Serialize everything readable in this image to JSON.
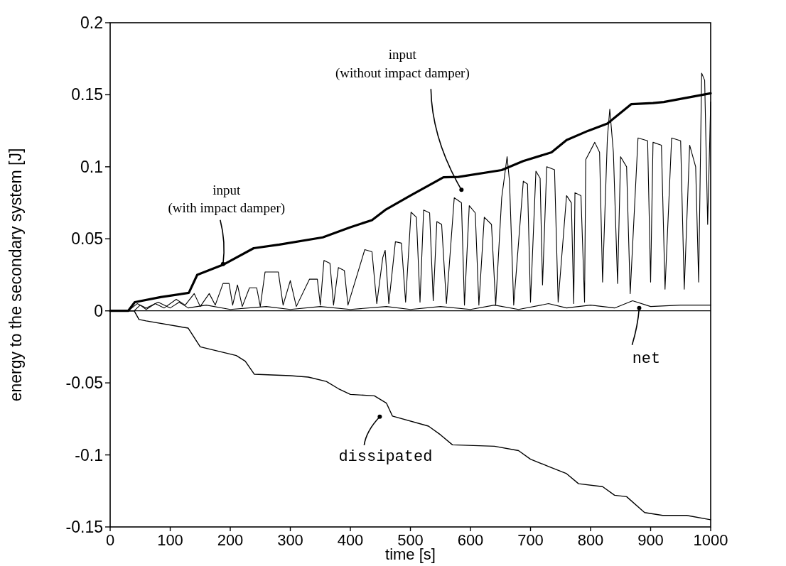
{
  "chart_data": {
    "type": "line",
    "xlabel": "time [s]",
    "ylabel": "energy to the secondary system [J]",
    "xlim": [
      0,
      1000
    ],
    "xticks": [
      0,
      100,
      200,
      300,
      400,
      500,
      600,
      700,
      800,
      900,
      1000
    ],
    "ylim": [
      -0.15,
      0.2
    ],
    "yticks": [
      -0.15,
      -0.1,
      -0.05,
      0,
      0.05,
      0.1,
      0.15,
      0.2
    ],
    "ref_lines": [
      {
        "axis": "y",
        "value": 0
      }
    ],
    "series": [
      {
        "color": "#000000",
        "x": [
          0,
          30,
          41,
          84,
          131,
          145,
          188,
          239,
          282,
          354,
          400,
          436,
          458,
          500,
          555,
          580,
          652,
          688,
          735,
          760,
          796,
          828,
          868,
          904,
          922,
          1000
        ],
        "values": [
          0,
          0,
          0.006,
          0.0095,
          0.0125,
          0.025,
          0.032,
          0.0435,
          0.046,
          0.051,
          0.058,
          0.063,
          0.07,
          0.08,
          0.0927,
          0.093,
          0.0977,
          0.104,
          0.11,
          0.1185,
          0.125,
          0.13,
          0.1435,
          0.1442,
          0.145,
          0.151
        ]
      },
      {
        "color": "#000000",
        "x": [
          0,
          40,
          50,
          60,
          75,
          90,
          110,
          125,
          140,
          150,
          165,
          175,
          188,
          198,
          204,
          212,
          220,
          232,
          244,
          250,
          258,
          280,
          288,
          300,
          310,
          332,
          345,
          350,
          356,
          366,
          372,
          380,
          390,
          396,
          424,
          436,
          444,
          454,
          458,
          464,
          475,
          485,
          492,
          501,
          510,
          516,
          522,
          532,
          538,
          544,
          552,
          560,
          573,
          585,
          590,
          598,
          608,
          614,
          623,
          635,
          642,
          652,
          661,
          665,
          672,
          688,
          695,
          700,
          709,
          716,
          720,
          727,
          740,
          746,
          760,
          768,
          772,
          774,
          784,
          790,
          792,
          807,
          815,
          820,
          828,
          832,
          838,
          845,
          850,
          860,
          866,
          879,
          895,
          900,
          904,
          918,
          924,
          935,
          950,
          956,
          965,
          975,
          980,
          985,
          990,
          995,
          1000
        ],
        "values": [
          0,
          0,
          0.004,
          0.001,
          0.005,
          0.002,
          0.008,
          0.004,
          0.012,
          0.003,
          0.012,
          0.004,
          0.019,
          0.019,
          0.004,
          0.018,
          0.003,
          0.016,
          0.016,
          0.003,
          0.027,
          0.027,
          0.004,
          0.021,
          0.003,
          0.022,
          0.022,
          0.004,
          0.035,
          0.033,
          0.004,
          0.03,
          0.028,
          0.004,
          0.0425,
          0.041,
          0.005,
          0.037,
          0.042,
          0.005,
          0.048,
          0.047,
          0.006,
          0.0685,
          0.065,
          0.006,
          0.07,
          0.068,
          0.007,
          0.062,
          0.06,
          0.005,
          0.0785,
          0.075,
          0.004,
          0.073,
          0.068,
          0.004,
          0.065,
          0.06,
          0.004,
          0.0785,
          0.107,
          0.09,
          0.004,
          0.09,
          0.088,
          0.006,
          0.097,
          0.092,
          0.018,
          0.1,
          0.098,
          0.006,
          0.08,
          0.075,
          0.005,
          0.082,
          0.08,
          0.006,
          0.105,
          0.117,
          0.11,
          0.02,
          0.12,
          0.14,
          0.11,
          0.019,
          0.107,
          0.1,
          0.012,
          0.12,
          0.118,
          0.02,
          0.117,
          0.115,
          0.015,
          0.12,
          0.118,
          0.015,
          0.115,
          0.1,
          0.02,
          0.165,
          0.16,
          0.06,
          0.145
        ]
      },
      {
        "color": "#000000",
        "x": [
          0,
          30,
          45,
          60,
          80,
          100,
          115,
          130,
          160,
          200,
          260,
          300,
          350,
          400,
          460,
          500,
          550,
          600,
          640,
          680,
          730,
          760,
          800,
          840,
          870,
          900,
          950,
          1000
        ],
        "values": [
          0,
          0,
          0.005,
          0.002,
          0.006,
          0.002,
          0.006,
          0.002,
          0.004,
          0.001,
          0.003,
          0.001,
          0.003,
          0.001,
          0.003,
          0.001,
          0.003,
          0.001,
          0.004,
          0.001,
          0.005,
          0.002,
          0.004,
          0.002,
          0.007,
          0.003,
          0.004,
          0.004
        ]
      },
      {
        "color": "#000000",
        "x": [
          0,
          40,
          48,
          60,
          130,
          150,
          210,
          225,
          240,
          300,
          330,
          360,
          380,
          400,
          440,
          460,
          470,
          530,
          550,
          570,
          640,
          680,
          700,
          730,
          760,
          780,
          820,
          840,
          860,
          890,
          920,
          960,
          1000
        ],
        "values": [
          0,
          0,
          -0.006,
          -0.007,
          -0.012,
          -0.025,
          -0.031,
          -0.035,
          -0.044,
          -0.045,
          -0.046,
          -0.049,
          -0.054,
          -0.058,
          -0.059,
          -0.064,
          -0.073,
          -0.08,
          -0.086,
          -0.093,
          -0.094,
          -0.097,
          -0.103,
          -0.108,
          -0.113,
          -0.12,
          -0.122,
          -0.128,
          -0.129,
          -0.14,
          -0.142,
          -0.142,
          -0.145
        ]
      }
    ],
    "annotations": [
      {
        "text": "input\n(with impact damper)",
        "x": 188,
        "y": 0.0325
      },
      {
        "text": "input\n(without impact damper)",
        "x": 585,
        "y": 0.084
      },
      {
        "text": "net",
        "x": 881,
        "y": 0.002
      },
      {
        "text": "dissipated",
        "x": 449,
        "y": -0.0735
      }
    ]
  }
}
